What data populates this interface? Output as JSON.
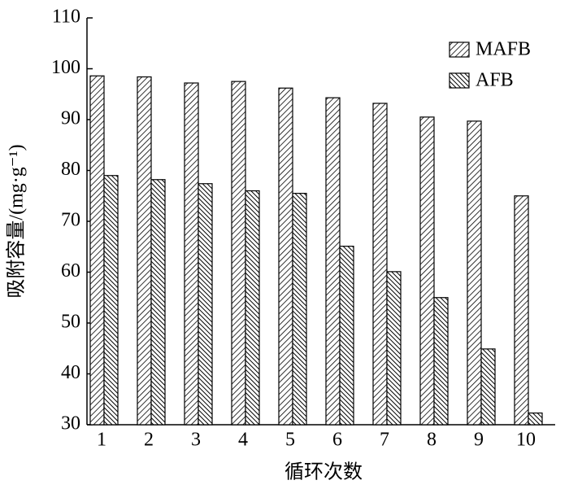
{
  "chart_data": {
    "type": "bar",
    "x_label": "循环次数",
    "y_label": "吸附容量/(mg·g⁻¹)",
    "categories": [
      "1",
      "2",
      "3",
      "4",
      "5",
      "6",
      "7",
      "8",
      "9",
      "10"
    ],
    "series": [
      {
        "name": "MAFB",
        "color": "#000000",
        "hatch": "/",
        "values": [
          98.6,
          98.4,
          97.2,
          97.5,
          96.2,
          94.3,
          93.2,
          90.5,
          89.7,
          75.0
        ]
      },
      {
        "name": "AFB",
        "color": "#000000",
        "hatch": "\\",
        "values": [
          79.0,
          78.2,
          77.4,
          76.0,
          75.5,
          65.1,
          60.1,
          55.0,
          44.9,
          32.3
        ]
      }
    ],
    "ylim": [
      30,
      110
    ],
    "yticks": [
      30,
      40,
      50,
      60,
      70,
      80,
      90,
      100,
      110
    ],
    "legend": "upper right",
    "grid": false
  }
}
